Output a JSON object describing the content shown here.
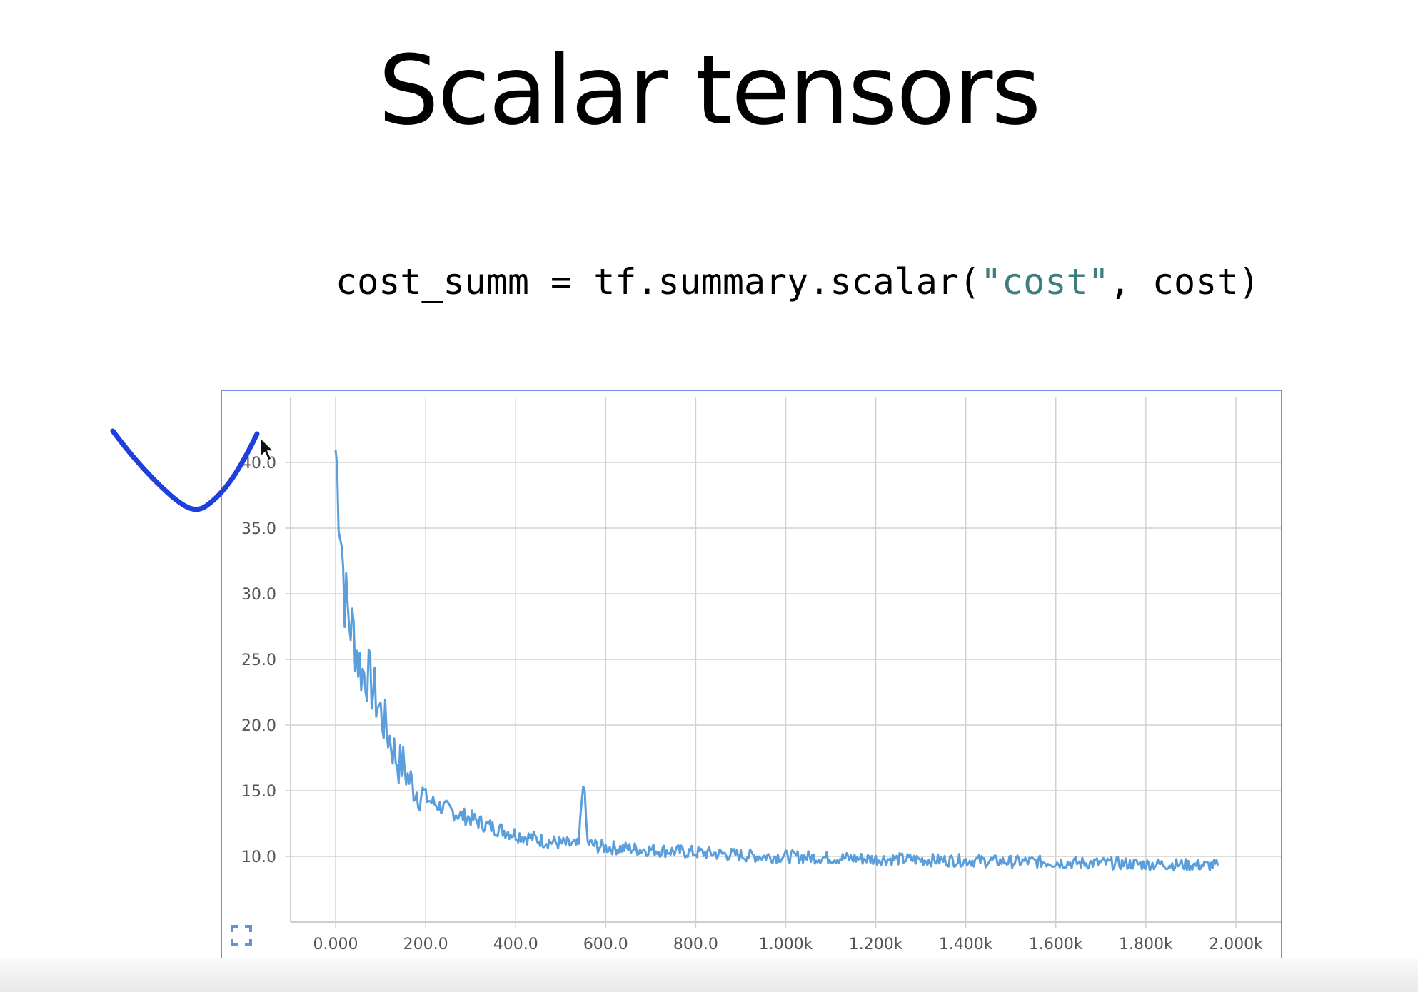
{
  "slide": {
    "title": "Scalar tensors",
    "code": {
      "prefix": "cost_summ = tf.summary.scalar(",
      "string_arg": "\"cost\"",
      "suffix": ", cost)"
    }
  },
  "colors": {
    "line": "#5a9fdc",
    "frame": "#6a8fdc",
    "grid": "#d2d2d2",
    "annotation": "#1f3fdc",
    "code_string": "#3d7f7f"
  },
  "icons": {
    "expand": "expand-icon",
    "cursor": "mouse-pointer-icon"
  },
  "chart_data": {
    "type": "line",
    "title": "",
    "xlabel": "",
    "ylabel": "",
    "xlim": [
      -100,
      2100
    ],
    "ylim": [
      5,
      45
    ],
    "grid": true,
    "x_ticks": [
      0,
      200,
      400,
      600,
      800,
      1000,
      1200,
      1400,
      1600,
      1800,
      2000
    ],
    "x_tick_labels": [
      "0.000",
      "200.0",
      "400.0",
      "600.0",
      "800.0",
      "1.000k",
      "1.200k",
      "1.400k",
      "1.600k",
      "1.800k",
      "2.000k"
    ],
    "y_ticks": [
      10,
      15,
      20,
      25,
      30,
      35,
      40
    ],
    "y_tick_labels": [
      "10.0",
      "15.0",
      "20.0",
      "25.0",
      "30.0",
      "35.0",
      "40.0"
    ],
    "series": [
      {
        "x": [
          0,
          10,
          20,
          30,
          40,
          50,
          60,
          70,
          80,
          90,
          100,
          110,
          120,
          130,
          140,
          150,
          160,
          170,
          180,
          190,
          200,
          210,
          220,
          240,
          260,
          280,
          300,
          320,
          340,
          360,
          380,
          400,
          420,
          440,
          460,
          480,
          500,
          520,
          540,
          550,
          560,
          580,
          600,
          650,
          700,
          750,
          800,
          850,
          900,
          950,
          1000,
          1050,
          1100,
          1150,
          1200,
          1250,
          1300,
          1350,
          1400,
          1450,
          1500,
          1550,
          1600,
          1650,
          1700,
          1750,
          1800,
          1850,
          1900,
          1960
        ],
        "values": [
          41,
          36,
          30,
          28,
          27,
          25,
          24,
          24,
          23,
          22,
          21,
          20,
          19,
          18,
          17,
          17,
          16,
          15.5,
          15,
          14.8,
          14.5,
          14.2,
          14,
          13.7,
          13.4,
          13.1,
          12.9,
          12.6,
          12.3,
          12.1,
          11.9,
          11.7,
          11.5,
          11.4,
          11.2,
          11.1,
          11,
          10.9,
          10.8,
          16,
          11,
          10.8,
          10.7,
          10.6,
          10.5,
          10.4,
          10.3,
          10.2,
          10.1,
          10,
          10,
          9.95,
          9.9,
          9.85,
          9.8,
          9.8,
          9.75,
          9.7,
          9.7,
          9.65,
          9.6,
          9.6,
          9.55,
          9.5,
          9.5,
          9.45,
          9.4,
          9.4,
          9.35,
          9.3
        ]
      }
    ]
  }
}
